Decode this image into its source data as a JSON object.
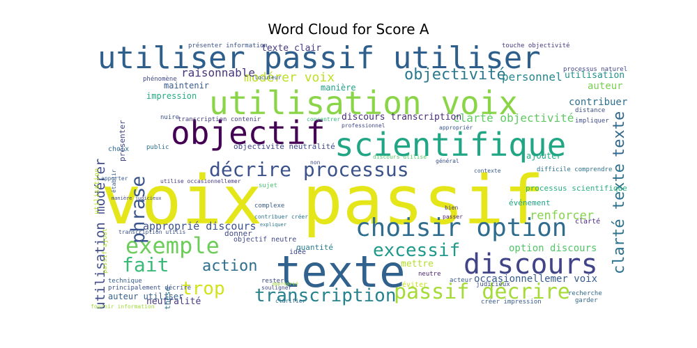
{
  "title": "Word Cloud for Score A",
  "chart_data": {
    "type": "word_cloud",
    "title": "Word Cloud for Score A",
    "palette": "viridis",
    "words": [
      {
        "text": "voix passif",
        "color": "#e4e61a"
      },
      {
        "text": "texte",
        "color": "#30628d"
      },
      {
        "text": "utiliser passif utiliser",
        "color": "#2e5f8c"
      },
      {
        "text": "utilisation voix",
        "color": "#8ad547"
      },
      {
        "text": "scientifique",
        "color": "#21a685"
      },
      {
        "text": "objectif",
        "color": "#440154"
      },
      {
        "text": "choisir option",
        "color": "#2f6c8e"
      },
      {
        "text": "discours",
        "color": "#414487"
      },
      {
        "text": "décrire processus",
        "color": "#3b528b"
      },
      {
        "text": "exemple",
        "color": "#6ccd5a"
      },
      {
        "text": "phrase",
        "color": "#3a548c"
      },
      {
        "text": "passif décrire",
        "color": "#a5db36"
      },
      {
        "text": "transcription",
        "color": "#26828e"
      },
      {
        "text": "texte",
        "color": "#31688e"
      },
      {
        "text": "clarté texte",
        "color": "#2c728e"
      },
      {
        "text": "excessif",
        "color": "#1f9a8a"
      },
      {
        "text": "fait",
        "color": "#3aba76"
      },
      {
        "text": "action",
        "color": "#2d708e"
      },
      {
        "text": "trop",
        "color": "#d2e21b"
      },
      {
        "text": "objectivité",
        "color": "#2a788e"
      },
      {
        "text": "modérer voix",
        "color": "#bddf26"
      },
      {
        "text": "utilisation modérer",
        "color": "#3e4a89"
      },
      {
        "text": "raisonnable",
        "color": "#46337e"
      },
      {
        "text": "personnel",
        "color": "#25858e"
      },
      {
        "text": "clarté objectivité",
        "color": "#5ec962"
      },
      {
        "text": "approprié discours",
        "color": "#3b528b"
      },
      {
        "text": "renforcer",
        "color": "#84d44b"
      },
      {
        "text": "option discours",
        "color": "#52c569"
      },
      {
        "text": "occasionnellemer voix",
        "color": "#365c8d"
      },
      {
        "text": "neutralité",
        "color": "#443983"
      },
      {
        "text": "mettre",
        "color": "#b5de2b"
      },
      {
        "text": "contribuer",
        "color": "#2e6f8e"
      },
      {
        "text": "auteur",
        "color": "#7ad151"
      },
      {
        "text": "utilisation",
        "color": "#21918c"
      },
      {
        "text": "maintenir",
        "color": "#38598c"
      },
      {
        "text": "impression",
        "color": "#25ab82"
      },
      {
        "text": "discours transcription",
        "color": "#472c7a"
      },
      {
        "text": "objectivité neutralité",
        "color": "#3e4a89"
      },
      {
        "text": "ajouter",
        "color": "#22a884"
      },
      {
        "text": "texte clair",
        "color": "#443a83"
      },
      {
        "text": "manière",
        "color": "#1fa088"
      },
      {
        "text": "processus scientifique",
        "color": "#2ab07f"
      },
      {
        "text": "événement",
        "color": "#20a386"
      },
      {
        "text": "quantité",
        "color": "#287c8e"
      },
      {
        "text": "idée",
        "color": "#404688"
      },
      {
        "text": "passif ajout",
        "color": "#addc30"
      },
      {
        "text": "utilisation",
        "color": "#b8de29"
      },
      {
        "text": "présenter",
        "color": "#414487"
      },
      {
        "text": "choix",
        "color": "#2e6e8e"
      },
      {
        "text": "thèse",
        "color": "#2c728e"
      },
      {
        "text": "neutre",
        "color": "#481f70"
      },
      {
        "text": "donner",
        "color": "#3f4788"
      },
      {
        "text": "auteur utiliser",
        "color": "#35608d"
      },
      {
        "text": "éviter",
        "color": "#c8e020"
      },
      {
        "text": "clarté",
        "color": "#482878"
      },
      {
        "text": "processus naturel",
        "color": "#404688"
      },
      {
        "text": "touche objectivité",
        "color": "#453781"
      },
      {
        "text": "présenter information",
        "color": "#3b528b"
      },
      {
        "text": "phénomène",
        "color": "#3f4889"
      },
      {
        "text": "transcription contenir",
        "color": "#433e85"
      },
      {
        "text": "créer impression",
        "color": "#375a8c"
      },
      {
        "text": "recherche",
        "color": "#31688e"
      },
      {
        "text": "garder",
        "color": "#306a8e"
      },
      {
        "text": "complexe",
        "color": "#365d8d"
      },
      {
        "text": "distance",
        "color": "#3d4e8a"
      },
      {
        "text": "impliquer",
        "color": "#3e4c8a"
      },
      {
        "text": "contexte",
        "color": "#38588c"
      },
      {
        "text": "difficile comprendre",
        "color": "#2c728e"
      },
      {
        "text": "technique",
        "color": "#365d8d"
      },
      {
        "text": "nuire",
        "color": "#3b518b"
      },
      {
        "text": "public",
        "color": "#2d708e"
      },
      {
        "text": "fournir information",
        "color": "#a0da39"
      },
      {
        "text": "principalement décrire",
        "color": "#3a538b"
      },
      {
        "text": "rester",
        "color": "#3d4d8a"
      },
      {
        "text": "souligner",
        "color": "#3e4989"
      },
      {
        "text": "sujet",
        "color": "#46c06f"
      },
      {
        "text": "bien",
        "color": "#453882"
      },
      {
        "text": "passer",
        "color": "#482173"
      },
      {
        "text": "objectif neutre",
        "color": "#3f4788"
      },
      {
        "text": "contribuer créer",
        "color": "#2b748e"
      },
      {
        "text": "transcription utilis",
        "color": "#3b528b"
      },
      {
        "text": "manière judicieux",
        "color": "#3e4a89"
      },
      {
        "text": "utilise occasionnellemer",
        "color": "#443a83"
      },
      {
        "text": "établir",
        "color": "#38588c"
      },
      {
        "text": "apporter",
        "color": "#375b8d"
      },
      {
        "text": "discours utilise",
        "color": "#56c667"
      },
      {
        "text": "non",
        "color": "#3e4989"
      },
      {
        "text": "approprié",
        "color": "#9bd93c"
      },
      {
        "text": "appropriér",
        "color": "#3a548c"
      },
      {
        "text": "professionnel",
        "color": "#3f4788"
      },
      {
        "text": "expliquer",
        "color": "#2a778e"
      },
      {
        "text": "locuteur",
        "color": "#39568c"
      },
      {
        "text": "général",
        "color": "#3b518b"
      },
      {
        "text": "concentrer",
        "color": "#35b779"
      },
      {
        "text": "judicieux",
        "color": "#3d4e8a"
      },
      {
        "text": "acteur",
        "color": "#38598c"
      },
      {
        "text": "clarifier",
        "color": "#2e6e8e"
      }
    ]
  }
}
